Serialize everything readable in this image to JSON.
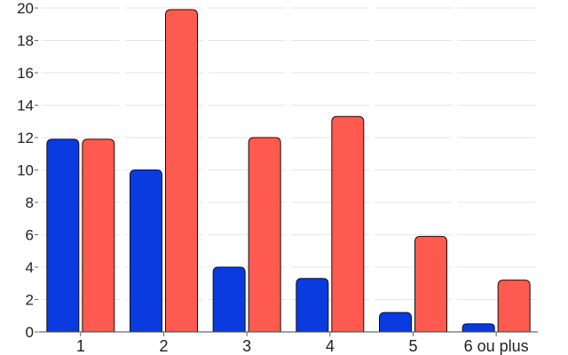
{
  "chart_data": {
    "type": "bar",
    "categories": [
      "1",
      "2",
      "3",
      "4",
      "5",
      "6 ou plus"
    ],
    "series": [
      {
        "color": "#0a3be0",
        "values": [
          11.9,
          10.0,
          4.0,
          3.3,
          1.2,
          0.5
        ]
      },
      {
        "color": "#ff5a4f",
        "values": [
          11.9,
          19.9,
          12.0,
          13.3,
          5.9,
          3.2
        ]
      }
    ],
    "yticks": [
      0,
      2,
      4,
      6,
      8,
      10,
      12,
      14,
      16,
      18,
      20
    ],
    "ylim": [
      0,
      20
    ],
    "grid": true,
    "title": "",
    "xlabel": "",
    "ylabel": ""
  }
}
